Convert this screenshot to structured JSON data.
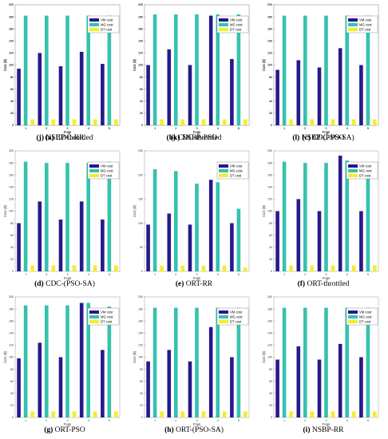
{
  "colors": {
    "vm": "#26198a",
    "mg": "#35c2ad",
    "dt": "#f2ee2c"
  },
  "chart_data": [
    {
      "type": "bar",
      "label": "(a)",
      "caption": "CDC-RR",
      "xlabel": "Fogs",
      "ylabel": "Cost ($)",
      "categories": [
        "1",
        "2",
        "3",
        "4",
        "5"
      ],
      "ylim": [
        0,
        200
      ],
      "yticks": [
        0,
        20,
        40,
        60,
        80,
        100,
        120,
        140,
        160,
        180,
        200
      ],
      "legend_position": "top-right",
      "series": [
        {
          "name": "VM cost",
          "values": [
            98,
            122,
            98,
            122,
            100
          ]
        },
        {
          "name": "MG cost",
          "values": [
            181,
            180,
            181,
            180,
            181
          ]
        },
        {
          "name": "DT cost",
          "values": [
            10,
            10,
            10,
            10,
            10
          ]
        }
      ]
    },
    {
      "type": "bar",
      "label": "(b)",
      "caption": "CDC-throttled",
      "xlabel": "Fogs",
      "ylabel": "Cost ($)",
      "categories": [
        "1",
        "2",
        "3",
        "4",
        "5"
      ],
      "ylim": [
        0,
        200
      ],
      "yticks": [
        0,
        20,
        40,
        60,
        80,
        100,
        120,
        140,
        160,
        180,
        200
      ],
      "legend_position": "top-right",
      "series": [
        {
          "name": "VM cost",
          "values": [
            98,
            120,
            98,
            192,
            100
          ]
        },
        {
          "name": "MG cost",
          "values": [
            182,
            182,
            182,
            184,
            182
          ]
        },
        {
          "name": "DT cost",
          "values": [
            10,
            10,
            10,
            10,
            10
          ]
        }
      ]
    },
    {
      "type": "bar",
      "label": "(c)",
      "caption": "CDC-PSO",
      "xlabel": "Fogs",
      "ylabel": "Cost ($)",
      "categories": [
        "1",
        "2",
        "3",
        "4",
        "5"
      ],
      "ylim": [
        0,
        200
      ],
      "yticks": [
        0,
        20,
        40,
        60,
        80,
        100,
        120,
        140,
        160,
        180,
        200
      ],
      "legend_position": "top-right",
      "series": [
        {
          "name": "VM cost",
          "values": [
            98,
            122,
            108,
            200,
            102
          ]
        },
        {
          "name": "MG cost",
          "values": [
            184,
            184,
            184,
            184,
            184
          ]
        },
        {
          "name": "DT cost",
          "values": [
            10,
            10,
            10,
            10,
            10
          ]
        }
      ]
    },
    {
      "type": "bar",
      "label": "(d)",
      "caption": "CDC-(PSO-SA)",
      "xlabel": "Fogs",
      "ylabel": "Cost ($)",
      "categories": [
        "1",
        "2",
        "3",
        "4",
        "5"
      ],
      "ylim": [
        0,
        200
      ],
      "yticks": [
        0,
        20,
        40,
        60,
        80,
        100,
        120,
        140,
        160,
        180,
        200
      ],
      "legend_position": "top-right",
      "series": [
        {
          "name": "VM cost",
          "values": [
            80,
            116,
            86,
            116,
            86
          ]
        },
        {
          "name": "MG cost",
          "values": [
            182,
            180,
            180,
            180,
            182
          ]
        },
        {
          "name": "DT cost",
          "values": [
            10,
            10,
            10,
            10,
            10
          ]
        }
      ]
    },
    {
      "type": "bar",
      "label": "(e)",
      "caption": "ORT-RR",
      "xlabel": "Fogs",
      "ylabel": "Cost ($)",
      "categories": [
        "1",
        "2",
        "3",
        "4",
        "5"
      ],
      "ylim": [
        0,
        250
      ],
      "yticks": [
        0,
        50,
        100,
        150,
        200,
        250
      ],
      "legend_position": "top-right",
      "series": [
        {
          "name": "VM cost",
          "values": [
            97,
            120,
            97,
            190,
            100
          ]
        },
        {
          "name": "MG cost",
          "values": [
            212,
            208,
            182,
            185,
            130
          ]
        },
        {
          "name": "DT cost",
          "values": [
            12,
            12,
            12,
            12,
            8
          ]
        }
      ]
    },
    {
      "type": "bar",
      "label": "(f)",
      "caption": "ORT-throttled",
      "xlabel": "Fogs",
      "ylabel": "Cost ($)",
      "categories": [
        "1",
        "2",
        "3",
        "4",
        "5"
      ],
      "ylim": [
        0,
        200
      ],
      "yticks": [
        0,
        20,
        40,
        60,
        80,
        100,
        120,
        140,
        160,
        180,
        200
      ],
      "legend_position": "top-right",
      "series": [
        {
          "name": "VM cost",
          "values": [
            100,
            120,
            100,
            192,
            100
          ]
        },
        {
          "name": "MG cost",
          "values": [
            182,
            180,
            180,
            184,
            180
          ]
        },
        {
          "name": "DT cost",
          "values": [
            10,
            10,
            10,
            10,
            10
          ]
        }
      ]
    },
    {
      "type": "bar",
      "label": "(g)",
      "caption": "ORT-PSO",
      "xlabel": "Fogs",
      "ylabel": "Cost ($)",
      "categories": [
        "1",
        "2",
        "3",
        "4",
        "5"
      ],
      "ylim": [
        0,
        200
      ],
      "yticks": [
        0,
        20,
        40,
        60,
        80,
        100,
        120,
        140,
        160,
        180,
        200
      ],
      "legend_position": "top-right",
      "series": [
        {
          "name": "VM cost",
          "values": [
            98,
            124,
            100,
            190,
            112
          ]
        },
        {
          "name": "MG cost",
          "values": [
            186,
            186,
            186,
            190,
            184
          ]
        },
        {
          "name": "DT cost",
          "values": [
            10,
            10,
            10,
            10,
            10
          ]
        }
      ]
    },
    {
      "type": "bar",
      "label": "(h)",
      "caption": "ORT-(PSO-SA)",
      "xlabel": "Fogs",
      "ylabel": "Cost ($)",
      "categories": [
        "1",
        "2",
        "3",
        "4",
        "5"
      ],
      "ylim": [
        0,
        200
      ],
      "yticks": [
        0,
        20,
        40,
        60,
        80,
        100,
        120,
        140,
        160,
        180,
        200
      ],
      "legend_position": "top-right",
      "series": [
        {
          "name": "VM cost",
          "values": [
            93,
            112,
            93,
            150,
            100
          ]
        },
        {
          "name": "MG cost",
          "values": [
            182,
            182,
            182,
            182,
            182
          ]
        },
        {
          "name": "DT cost",
          "values": [
            10,
            10,
            10,
            10,
            10
          ]
        }
      ]
    },
    {
      "type": "bar",
      "label": "(i)",
      "caption": "NSBP-RR",
      "xlabel": "Fogs",
      "ylabel": "Cost ($)",
      "categories": [
        "1",
        "2",
        "3",
        "4",
        "5"
      ],
      "ylim": [
        0,
        200
      ],
      "yticks": [
        0,
        20,
        40,
        60,
        80,
        100,
        120,
        140,
        160,
        180,
        200
      ],
      "legend_position": "top-right",
      "series": [
        {
          "name": "VM cost",
          "values": [
            96,
            118,
            96,
            122,
            100
          ]
        },
        {
          "name": "MG cost",
          "values": [
            182,
            182,
            182,
            182,
            182
          ]
        },
        {
          "name": "DT cost",
          "values": [
            10,
            10,
            10,
            10,
            10
          ]
        }
      ]
    },
    {
      "type": "bar",
      "label": "(j)",
      "caption": "NSBP-throttled",
      "xlabel": "Fogs",
      "ylabel": "Cost ($)",
      "categories": [
        "1",
        "2",
        "3",
        "4",
        "5"
      ],
      "ylim": [
        0,
        200
      ],
      "yticks": [
        0,
        20,
        40,
        60,
        80,
        100,
        120,
        140,
        160,
        180,
        200
      ],
      "legend_position": "top-right",
      "series": [
        {
          "name": "VM cost",
          "values": [
            94,
            120,
            98,
            122,
            102
          ]
        },
        {
          "name": "MG cost",
          "values": [
            182,
            182,
            182,
            182,
            182
          ]
        },
        {
          "name": "DT cost",
          "values": [
            10,
            10,
            10,
            10,
            10
          ]
        }
      ]
    },
    {
      "type": "bar",
      "label": "(k)",
      "caption": "NSBP-PSO",
      "xlabel": "Fogs",
      "ylabel": "Cost ($)",
      "categories": [
        "1",
        "2",
        "3",
        "4",
        "5"
      ],
      "ylim": [
        0,
        200
      ],
      "yticks": [
        0,
        20,
        40,
        60,
        80,
        100,
        120,
        140,
        160,
        180,
        200
      ],
      "legend_position": "top-right",
      "series": [
        {
          "name": "VM cost",
          "values": [
            100,
            126,
            100,
            182,
            110
          ]
        },
        {
          "name": "MG cost",
          "values": [
            184,
            184,
            184,
            184,
            184
          ]
        },
        {
          "name": "DT cost",
          "values": [
            10,
            10,
            10,
            10,
            10
          ]
        }
      ]
    },
    {
      "type": "bar",
      "label": "(l)",
      "caption": "NSBP-(PSO-SA)",
      "xlabel": "Fogs",
      "ylabel": "Cost ($)",
      "categories": [
        "1",
        "2",
        "3",
        "4",
        "5"
      ],
      "ylim": [
        0,
        200
      ],
      "yticks": [
        0,
        20,
        40,
        60,
        80,
        100,
        120,
        140,
        160,
        180,
        200
      ],
      "legend_position": "top-right",
      "series": [
        {
          "name": "VM cost",
          "values": [
            92,
            108,
            96,
            128,
            100
          ]
        },
        {
          "name": "MG cost",
          "values": [
            182,
            182,
            182,
            182,
            182
          ]
        },
        {
          "name": "DT cost",
          "values": [
            10,
            10,
            10,
            10,
            10
          ]
        }
      ]
    }
  ]
}
